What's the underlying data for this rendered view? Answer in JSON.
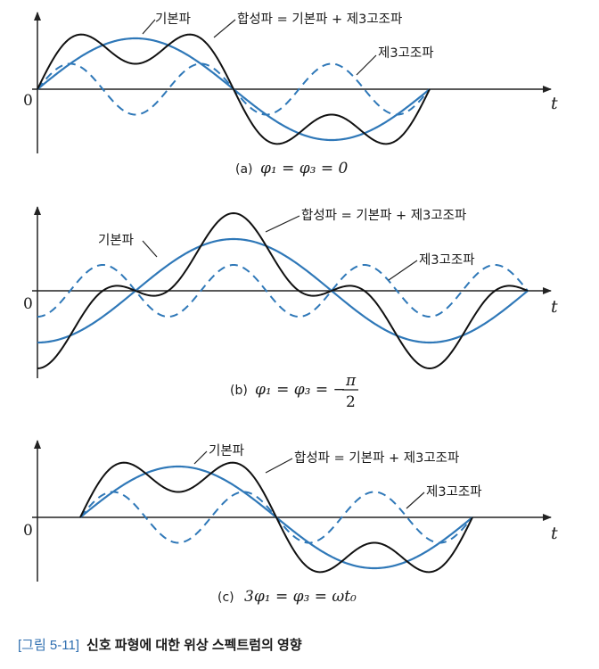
{
  "colors": {
    "fundamental": "#2f78b8",
    "third_harmonic": "#2f78b8",
    "composite": "#111111",
    "axis": "#222222",
    "caption_number": "#2f6fb0"
  },
  "axis_labels": {
    "time": "t",
    "origin": "0"
  },
  "legend": {
    "fundamental": "기본파",
    "composite": "합성파 = 기본파 + 제3고조파",
    "third_harmonic": "제3고조파"
  },
  "panels": [
    {
      "id": "a",
      "prefix": "(a)",
      "formula": "φ₁ = φ₃ = 0"
    },
    {
      "id": "b",
      "prefix": "(b)",
      "formula": "φ₁ = φ₃ = −",
      "fraction_num": "π",
      "fraction_den": "2"
    },
    {
      "id": "c",
      "prefix": "(c)",
      "formula": "3φ₁ = φ₃ = ωt₀"
    }
  ],
  "figure_caption": {
    "number": "[그림 5-11]",
    "text": "신호 파형에 대한 위상 스펙트럼의 영향"
  }
}
